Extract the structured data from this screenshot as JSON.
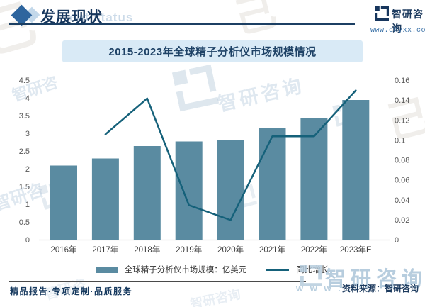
{
  "header": {
    "title": "发展现状",
    "echo_text": "ent status",
    "logo_name": "智研咨询",
    "logo_url": "www.chyxx.com"
  },
  "banner": {
    "title": "2015-2023年全球精子分析仪市场规模情况"
  },
  "chart_data": {
    "type": "bar+line combo",
    "title": "2015-2023年全球精子分析仪市场规模情况",
    "categories": [
      "2016年",
      "2017年",
      "2018年",
      "2019年",
      "2020年",
      "2021年",
      "2022年",
      "2023年E"
    ],
    "series": [
      {
        "name": "全球精子分析仪市场规模：亿美元",
        "type": "bar",
        "axis": "left",
        "values": [
          2.1,
          2.3,
          2.65,
          2.78,
          2.82,
          3.15,
          3.45,
          3.95
        ]
      },
      {
        "name": "同比增长",
        "type": "line",
        "axis": "right",
        "values": [
          null,
          0.106,
          0.142,
          0.035,
          0.02,
          0.104,
          0.104,
          0.15
        ]
      }
    ],
    "left_axis": {
      "min": 0,
      "max": 4.5,
      "ticks": [
        "0",
        "0.5",
        "1",
        "1.5",
        "2",
        "2.5",
        "3",
        "3.5",
        "4",
        "4.5"
      ]
    },
    "right_axis": {
      "min": 0,
      "max": 0.16,
      "ticks": [
        "0",
        "0.02",
        "0.04",
        "0.06",
        "0.08",
        "0.1",
        "0.12",
        "0.14",
        "0.16"
      ]
    },
    "grid": false,
    "legend_position": "bottom"
  },
  "colors": {
    "bar": "#5a8ba1",
    "line": "#15617a",
    "banner_bg": "#d9eaf6",
    "navy": "#17365d",
    "tick_gray": "#595959",
    "xlabel_gray": "#3d3d3d",
    "baseline": "#d9d9d9",
    "watermark_blue": "#b7cdde"
  },
  "footer": {
    "left_text": "精品报告·专项定制·品质服务",
    "source_text": "资料来源：智研咨询",
    "watermark_text": "智研咨询",
    "watermark_www": "w w w ."
  },
  "watermarks": {
    "brand": "智研咨询",
    "brand_short": "智研咨"
  }
}
